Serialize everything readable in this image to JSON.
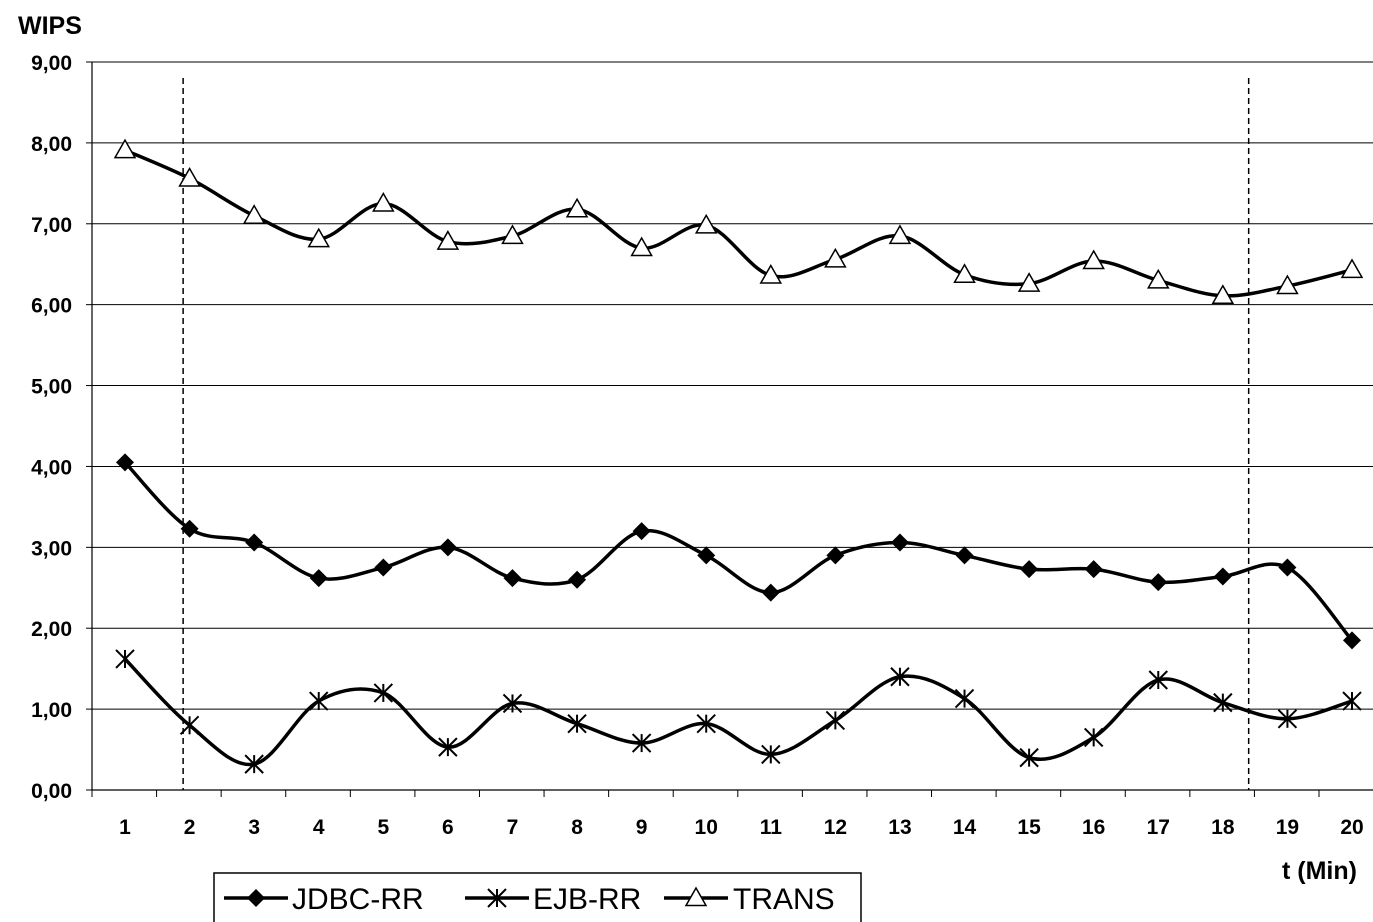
{
  "chart_data": {
    "type": "line",
    "ylabel": "WIPS",
    "xlabel": "t (Min)",
    "x": [
      1,
      2,
      3,
      4,
      5,
      6,
      7,
      8,
      9,
      10,
      11,
      12,
      13,
      14,
      15,
      16,
      17,
      18,
      19,
      20
    ],
    "ylim": [
      0,
      9
    ],
    "yticks": [
      "0,00",
      "1,00",
      "2,00",
      "3,00",
      "4,00",
      "5,00",
      "6,00",
      "7,00",
      "8,00",
      "9,00"
    ],
    "grid": true,
    "legend_position": "bottom-left",
    "reference_lines_x": [
      1.9,
      18.4
    ],
    "series": [
      {
        "name": "JDBC-RR",
        "marker": "diamond",
        "values": [
          4.05,
          3.23,
          3.06,
          2.62,
          2.75,
          3.0,
          2.62,
          2.6,
          3.2,
          2.9,
          2.44,
          2.9,
          3.06,
          2.9,
          2.73,
          2.73,
          2.57,
          2.64,
          2.75,
          1.85
        ]
      },
      {
        "name": "EJB-RR",
        "marker": "asterisk",
        "values": [
          1.62,
          0.8,
          0.32,
          1.1,
          1.2,
          0.53,
          1.07,
          0.82,
          0.58,
          0.82,
          0.44,
          0.86,
          1.4,
          1.13,
          0.4,
          0.65,
          1.36,
          1.08,
          0.88,
          1.1
        ]
      },
      {
        "name": "TRANS",
        "marker": "triangle",
        "values": [
          7.91,
          7.56,
          7.1,
          6.81,
          7.25,
          6.78,
          6.85,
          7.18,
          6.7,
          6.98,
          6.36,
          6.56,
          6.85,
          6.37,
          6.26,
          6.54,
          6.3,
          6.11,
          6.23,
          6.43
        ]
      }
    ]
  }
}
